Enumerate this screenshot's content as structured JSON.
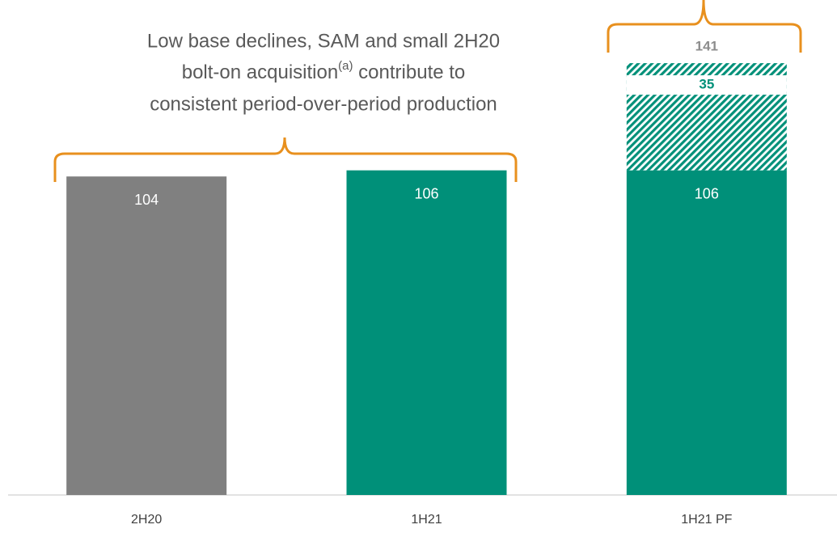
{
  "chart_data": {
    "type": "stacked_bar",
    "annotation": {
      "lines": [
        "Low base declines, SAM and small 2H20",
        "bolt-on acquisition",
        "consistent period-over-period production"
      ],
      "superscript": "(a)",
      "after_superscript": " contribute to"
    },
    "categories": [
      "2H20",
      "1H21",
      "1H21 PF"
    ],
    "series": [
      {
        "colors": [
          "#808080",
          "#009079",
          "#009079"
        ],
        "values": [
          104,
          106,
          106
        ]
      },
      {
        "color": "#009079",
        "pattern": "hatch",
        "values": [
          null,
          null,
          35
        ]
      }
    ],
    "totals": [
      null,
      null,
      141
    ],
    "total_color": "#8c8c8c",
    "ylim": [
      0,
      150
    ]
  }
}
